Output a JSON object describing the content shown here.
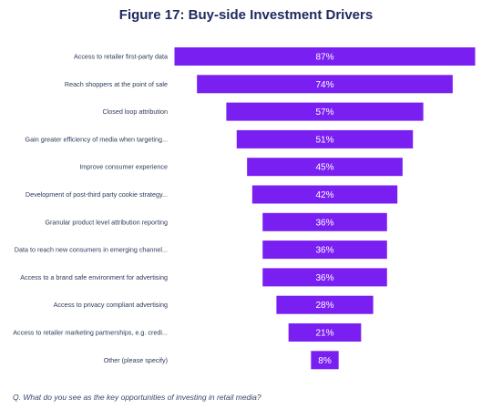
{
  "chart_data": {
    "type": "bar",
    "orientation": "horizontal-funnel",
    "title": "Figure 17: Buy-side Investment Drivers",
    "categories": [
      "Access to retailer first-party data",
      "Reach shoppers at the point of sale",
      "Closed loop attribution",
      "Gain greater efficiency of media when targeting...",
      "Improve consumer experience",
      "Development of post-third party cookie strategy...",
      "Granular product level attribution reporting",
      "Data to reach new consumers in emerging channel...",
      "Access to a brand safe environment for advertising",
      "Access to privacy compliant advertising",
      "Access to retailer marketing partnerships, e.g. credi...",
      "Other (please specify)"
    ],
    "values": [
      87,
      74,
      57,
      51,
      45,
      42,
      36,
      36,
      36,
      28,
      21,
      8
    ],
    "value_labels": [
      "87%",
      "74%",
      "57%",
      "51%",
      "45%",
      "42%",
      "36%",
      "36%",
      "36%",
      "28%",
      "21%",
      "8%"
    ],
    "unit": "%",
    "bar_color": "#7a1ff2",
    "grid": false,
    "legend": "none"
  },
  "footnote": "Q. What do you see as the key opportunities of investing in retail media?"
}
